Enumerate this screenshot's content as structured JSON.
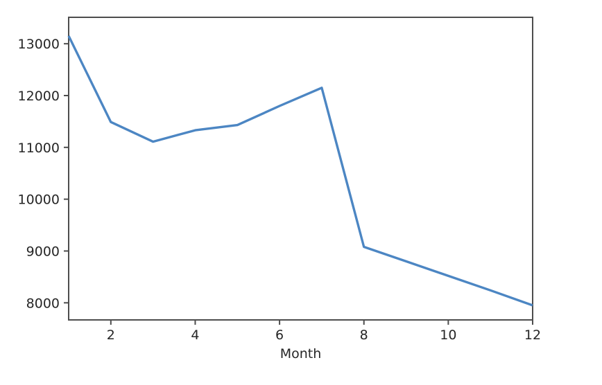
{
  "chart_data": {
    "type": "line",
    "x": [
      1,
      2,
      3,
      4,
      5,
      6,
      7,
      8,
      9,
      10,
      11,
      12
    ],
    "values": [
      13150,
      11490,
      11110,
      11330,
      11430,
      11800,
      12150,
      9080,
      8800,
      8520,
      8240,
      7950
    ],
    "xlabel": "Month",
    "x_ticks": [
      2,
      4,
      6,
      8,
      10,
      12
    ],
    "y_ticks": [
      8000,
      9000,
      10000,
      11000,
      12000,
      13000
    ],
    "xlim": [
      1,
      12
    ],
    "ylim": [
      7670,
      13510
    ],
    "grid": false,
    "legend": false,
    "line_color": "#4c86c3",
    "axis_color": "#4d4d4d",
    "tick_label_color": "#262626"
  }
}
